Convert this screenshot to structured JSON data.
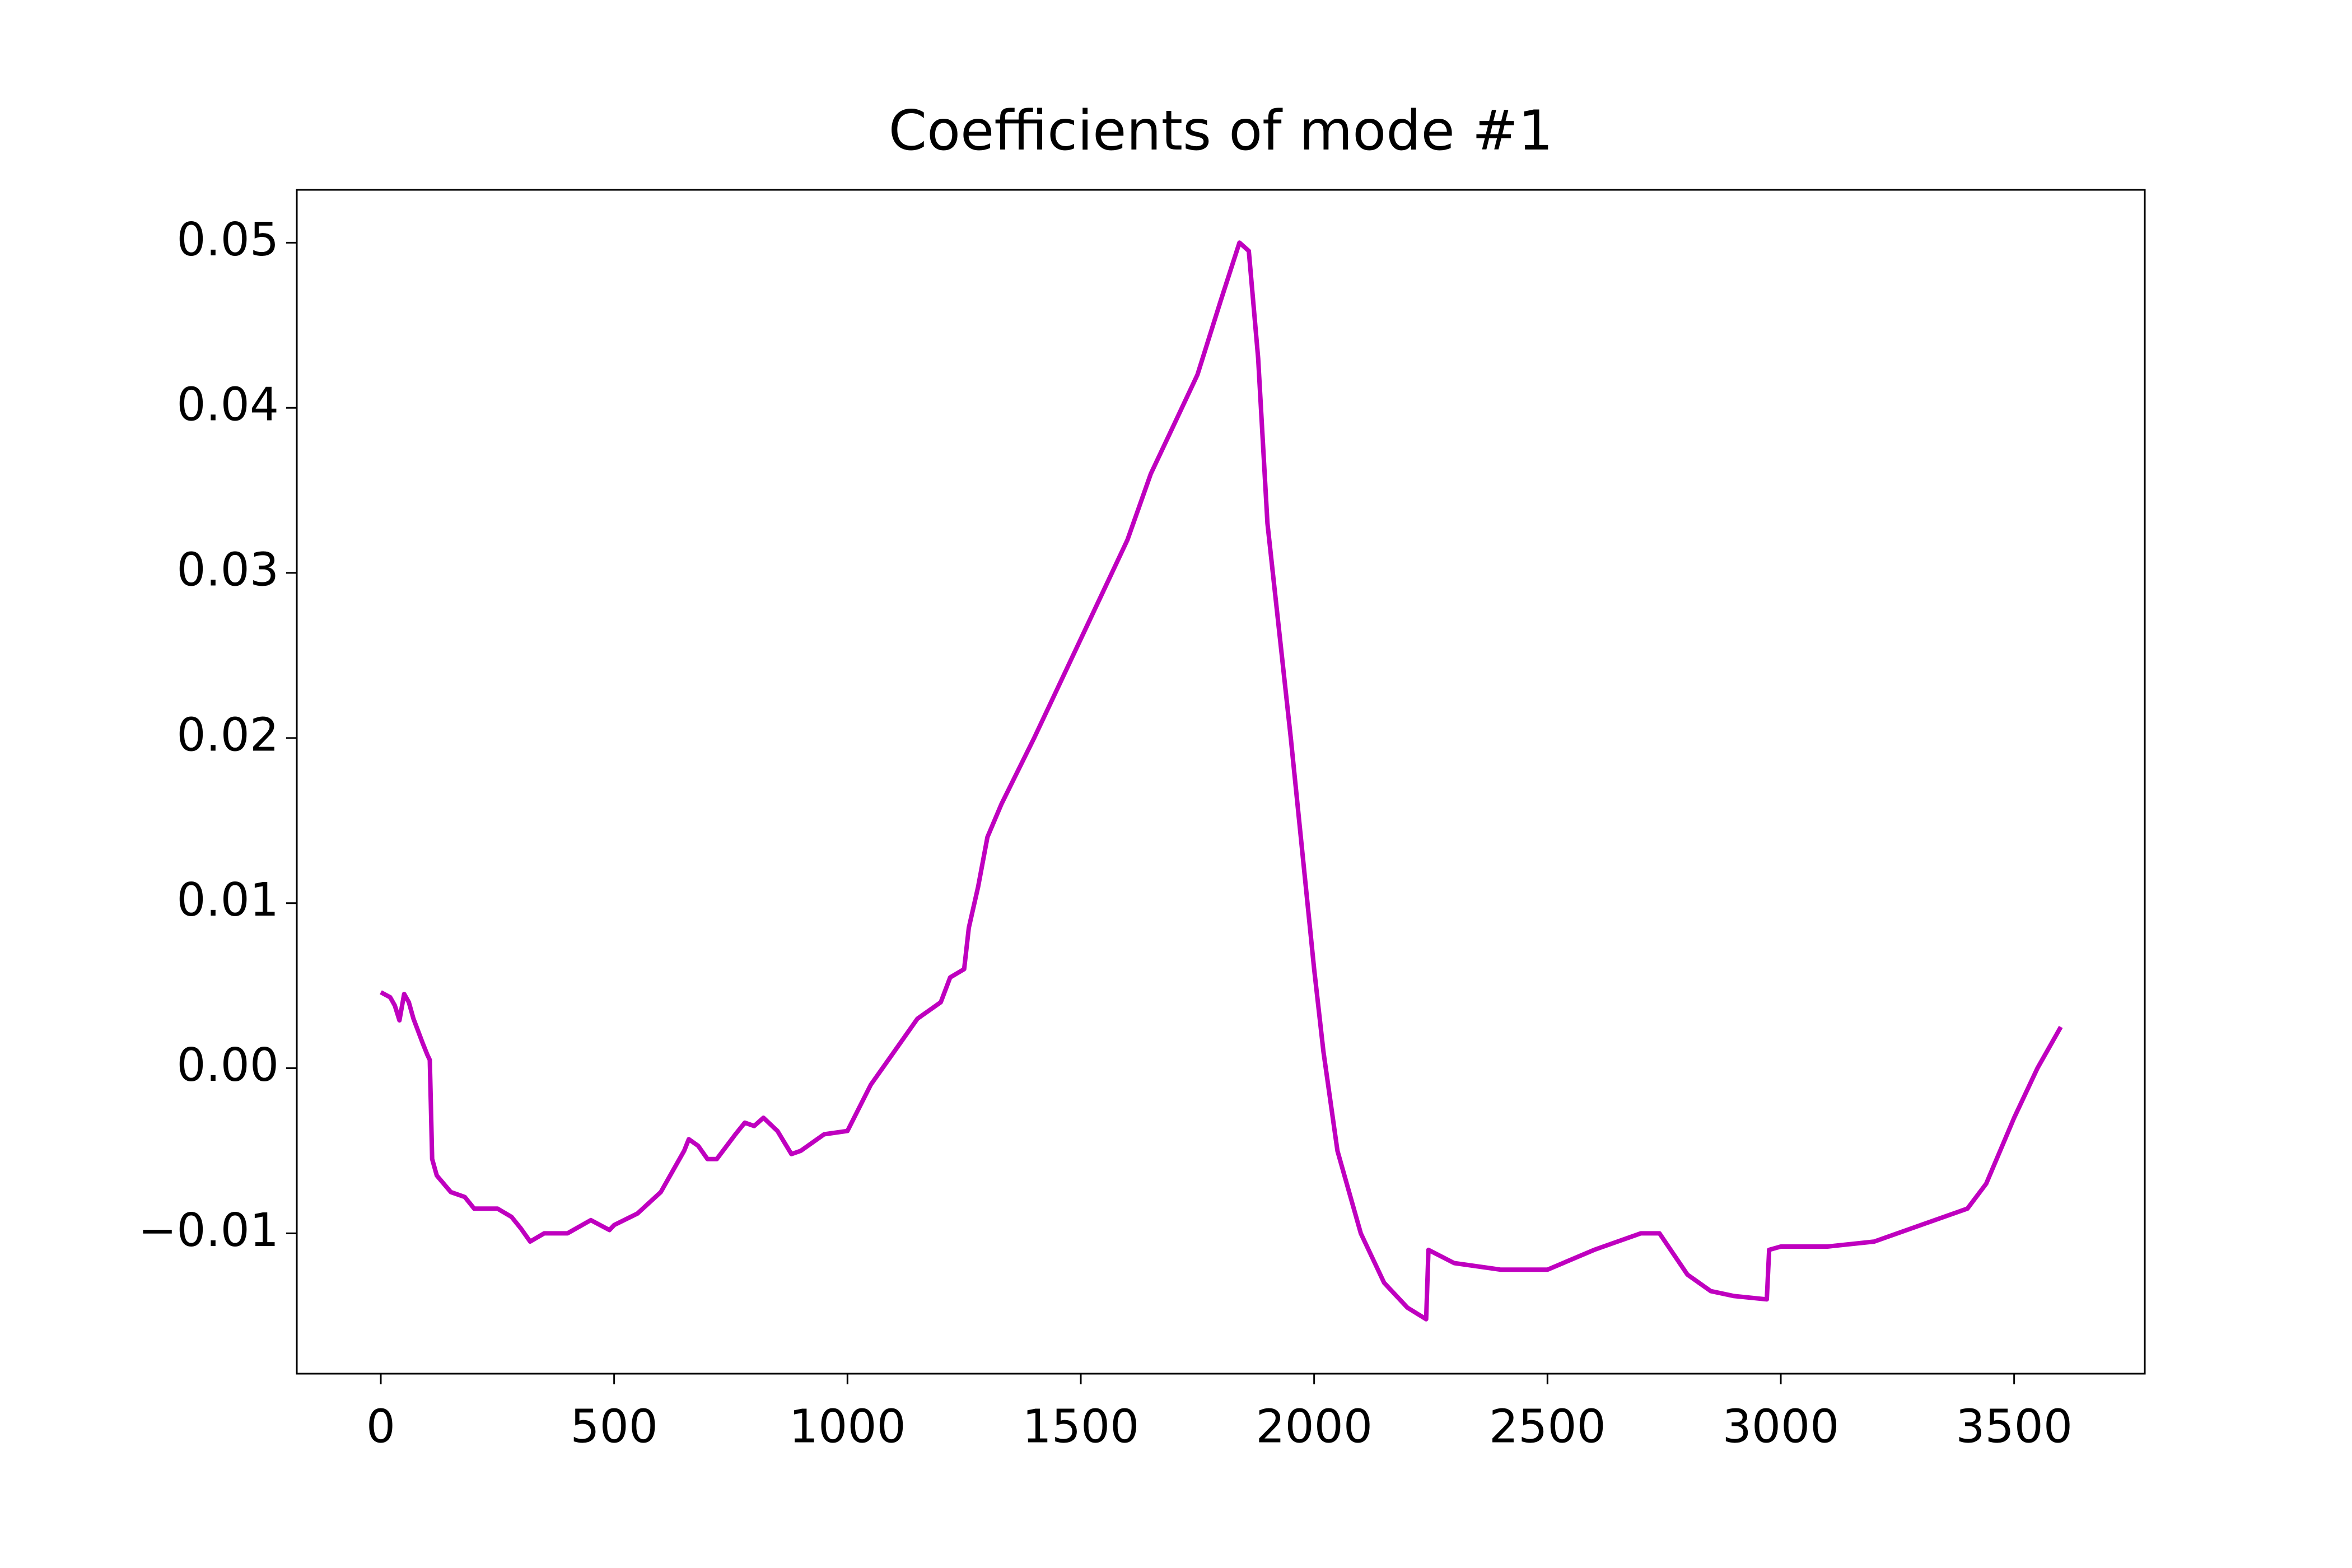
{
  "chart_data": {
    "type": "line",
    "title": "Coefficients of mode #1",
    "x": [
      0,
      20,
      30,
      40,
      50,
      60,
      70,
      90,
      100,
      105,
      110,
      120,
      150,
      180,
      200,
      250,
      280,
      300,
      320,
      350,
      400,
      450,
      490,
      500,
      550,
      600,
      630,
      650,
      660,
      680,
      700,
      720,
      760,
      780,
      800,
      820,
      850,
      880,
      900,
      950,
      1000,
      1050,
      1100,
      1150,
      1200,
      1220,
      1250,
      1260,
      1280,
      1300,
      1330,
      1400,
      1500,
      1550,
      1600,
      1650,
      1700,
      1750,
      1800,
      1840,
      1860,
      1880,
      1900,
      1950,
      2000,
      2020,
      2050,
      2100,
      2150,
      2200,
      2240,
      2245,
      2300,
      2400,
      2500,
      2600,
      2700,
      2740,
      2800,
      2850,
      2900,
      2970,
      2975,
      3000,
      3100,
      3200,
      3300,
      3400,
      3440,
      3500,
      3550,
      3600
    ],
    "series": [
      {
        "color": "#bf00bf",
        "values": [
          0.0046,
          0.0043,
          0.0038,
          0.0029,
          0.0045,
          0.004,
          0.003,
          0.0015,
          0.0008,
          0.0005,
          -0.0055,
          -0.0065,
          -0.0075,
          -0.0078,
          -0.0085,
          -0.0085,
          -0.009,
          -0.0097,
          -0.0105,
          -0.01,
          -0.01,
          -0.0092,
          -0.0098,
          -0.0095,
          -0.0088,
          -0.0075,
          -0.006,
          -0.005,
          -0.0043,
          -0.0047,
          -0.0055,
          -0.0055,
          -0.004,
          -0.0033,
          -0.0035,
          -0.003,
          -0.0038,
          -0.0052,
          -0.005,
          -0.004,
          -0.0038,
          -0.001,
          0.001,
          0.003,
          0.004,
          0.0055,
          0.006,
          0.0085,
          0.011,
          0.014,
          0.016,
          0.02,
          0.026,
          0.029,
          0.032,
          0.036,
          0.039,
          0.042,
          0.0465,
          0.05,
          0.0495,
          0.043,
          0.033,
          0.02,
          0.006,
          0.001,
          -0.005,
          -0.01,
          -0.013,
          -0.0145,
          -0.0152,
          -0.011,
          -0.0118,
          -0.0122,
          -0.0122,
          -0.011,
          -0.01,
          -0.01,
          -0.0125,
          -0.0135,
          -0.0138,
          -0.014,
          -0.011,
          -0.0108,
          -0.0108,
          -0.0105,
          -0.0095,
          -0.0085,
          -0.007,
          -0.003,
          0.0,
          0.0025
        ]
      }
    ],
    "xlim": [
      -180,
      3780
    ],
    "xticks": [
      0,
      500,
      1000,
      1500,
      2000,
      2500,
      3000,
      3500
    ],
    "ylim": [
      -0.0185,
      0.0532
    ],
    "yticks": [
      {
        "value": -0.01,
        "label": "−0.01"
      },
      {
        "value": 0,
        "label": "0.00"
      },
      0.01,
      0.02,
      0.03,
      0.04,
      0.05
    ]
  }
}
